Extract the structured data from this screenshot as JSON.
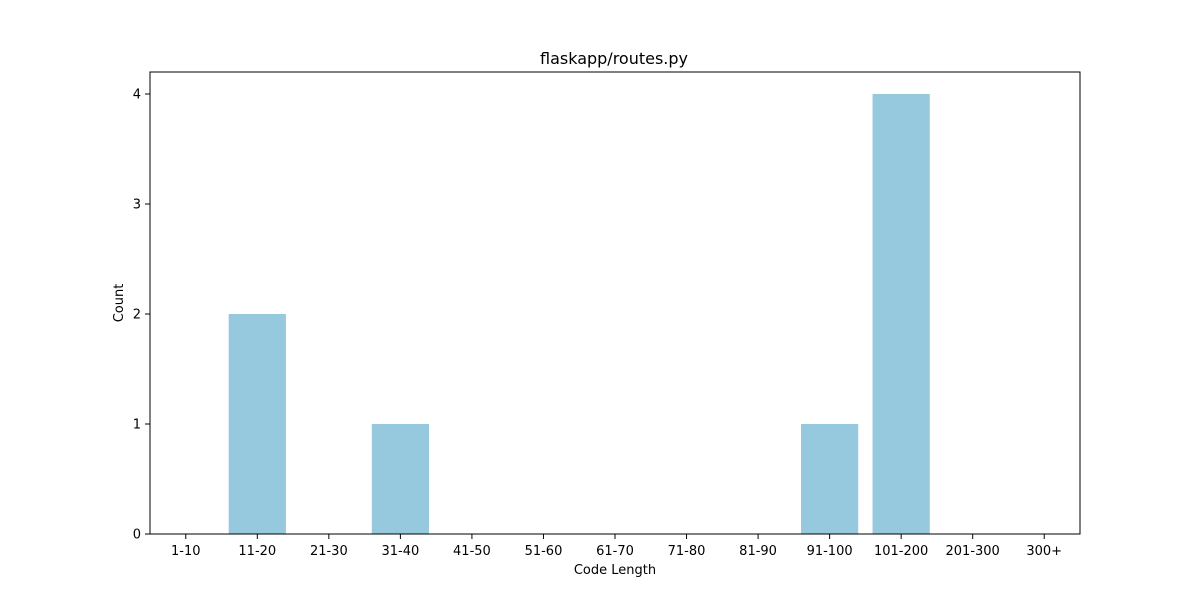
{
  "chart_data": {
    "type": "bar",
    "title": "flaskapp/routes.py",
    "xlabel": "Code Length",
    "ylabel": "Count",
    "categories": [
      "1-10",
      "11-20",
      "21-30",
      "31-40",
      "41-50",
      "51-60",
      "61-70",
      "71-80",
      "81-90",
      "91-100",
      "101-200",
      "201-300",
      "300+"
    ],
    "values": [
      0,
      2,
      0,
      1,
      0,
      0,
      0,
      0,
      0,
      1,
      4,
      0,
      0
    ],
    "ylim": [
      0,
      4.2
    ],
    "yticks": [
      "0",
      "1",
      "2",
      "3",
      "4"
    ],
    "grid": false,
    "bar_color": "#96c9dd",
    "axis_color": "#000000"
  }
}
